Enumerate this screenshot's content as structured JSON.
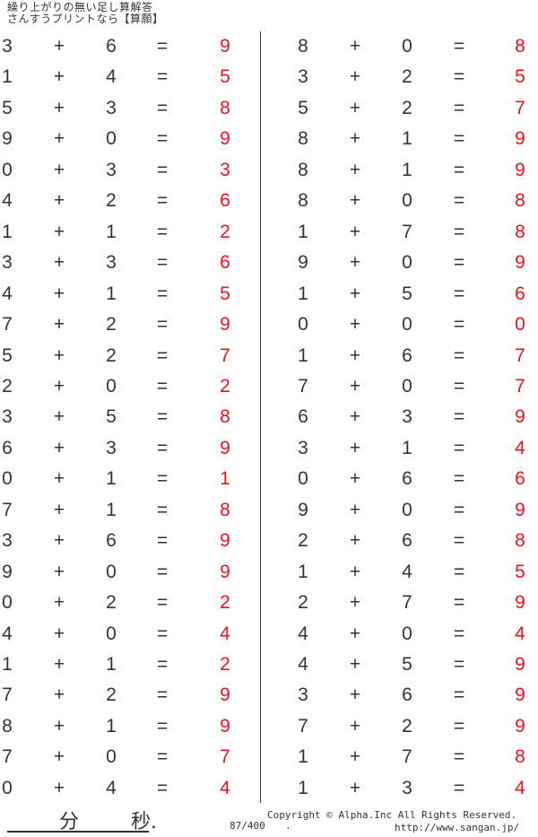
{
  "header": {
    "title": "繰り上がりの無い足し算解答",
    "subtitle": "さんすうプリントなら【算願】"
  },
  "colors": {
    "answer": "#e8111c",
    "text": "#333333"
  },
  "symbols": {
    "plus": "+",
    "equals": "="
  },
  "problems_left": [
    [
      "3",
      "6",
      "9"
    ],
    [
      "1",
      "4",
      "5"
    ],
    [
      "5",
      "3",
      "8"
    ],
    [
      "9",
      "0",
      "9"
    ],
    [
      "0",
      "3",
      "3"
    ],
    [
      "4",
      "2",
      "6"
    ],
    [
      "1",
      "1",
      "2"
    ],
    [
      "3",
      "3",
      "6"
    ],
    [
      "4",
      "1",
      "5"
    ],
    [
      "7",
      "2",
      "9"
    ],
    [
      "5",
      "2",
      "7"
    ],
    [
      "2",
      "0",
      "2"
    ],
    [
      "3",
      "5",
      "8"
    ],
    [
      "6",
      "3",
      "9"
    ],
    [
      "0",
      "1",
      "1"
    ],
    [
      "7",
      "1",
      "8"
    ],
    [
      "3",
      "6",
      "9"
    ],
    [
      "9",
      "0",
      "9"
    ],
    [
      "0",
      "2",
      "2"
    ],
    [
      "4",
      "0",
      "4"
    ],
    [
      "1",
      "1",
      "2"
    ],
    [
      "7",
      "2",
      "9"
    ],
    [
      "8",
      "1",
      "9"
    ],
    [
      "7",
      "0",
      "7"
    ],
    [
      "0",
      "4",
      "4"
    ]
  ],
  "problems_right": [
    [
      "8",
      "0",
      "8"
    ],
    [
      "3",
      "2",
      "5"
    ],
    [
      "5",
      "2",
      "7"
    ],
    [
      "8",
      "1",
      "9"
    ],
    [
      "8",
      "1",
      "9"
    ],
    [
      "8",
      "0",
      "8"
    ],
    [
      "1",
      "7",
      "8"
    ],
    [
      "9",
      "0",
      "9"
    ],
    [
      "1",
      "5",
      "6"
    ],
    [
      "0",
      "0",
      "0"
    ],
    [
      "1",
      "6",
      "7"
    ],
    [
      "7",
      "0",
      "7"
    ],
    [
      "6",
      "3",
      "9"
    ],
    [
      "3",
      "1",
      "4"
    ],
    [
      "0",
      "6",
      "6"
    ],
    [
      "9",
      "0",
      "9"
    ],
    [
      "2",
      "6",
      "8"
    ],
    [
      "1",
      "4",
      "5"
    ],
    [
      "2",
      "7",
      "9"
    ],
    [
      "4",
      "0",
      "4"
    ],
    [
      "4",
      "5",
      "9"
    ],
    [
      "3",
      "6",
      "9"
    ],
    [
      "7",
      "2",
      "9"
    ],
    [
      "1",
      "7",
      "8"
    ],
    [
      "1",
      "3",
      "4"
    ]
  ],
  "footer": {
    "minutes": "分",
    "seconds": "秒.",
    "page": "87/400",
    "copyright": "Copyright ©  Alpha.Inc All Rights Reserved.",
    "dot": ".",
    "url": "http://www.sangan.jp/"
  }
}
